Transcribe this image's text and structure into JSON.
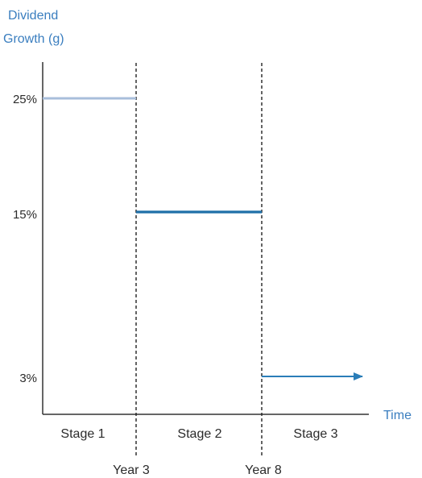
{
  "chart_data": {
    "type": "line",
    "ylabel_lines": [
      "Dividend",
      "Growth (g)"
    ],
    "xlabel": "Time",
    "y_ticks": [
      "25%",
      "15%",
      "3%"
    ],
    "boundary_labels": [
      "Year 3",
      "Year 8"
    ],
    "stage_labels": [
      "Stage 1",
      "Stage 2",
      "Stage 3"
    ],
    "segments": [
      {
        "stage": "Stage 1",
        "growth_pct": 25,
        "color": "#a8bedb",
        "arrow": false
      },
      {
        "stage": "Stage 2",
        "growth_pct": 15,
        "color": "#1f6fa8",
        "arrow": false
      },
      {
        "stage": "Stage 3",
        "growth_pct": 3,
        "color": "#2a7db8",
        "arrow": true
      }
    ],
    "boundary_style": "dashed",
    "grid": false
  }
}
